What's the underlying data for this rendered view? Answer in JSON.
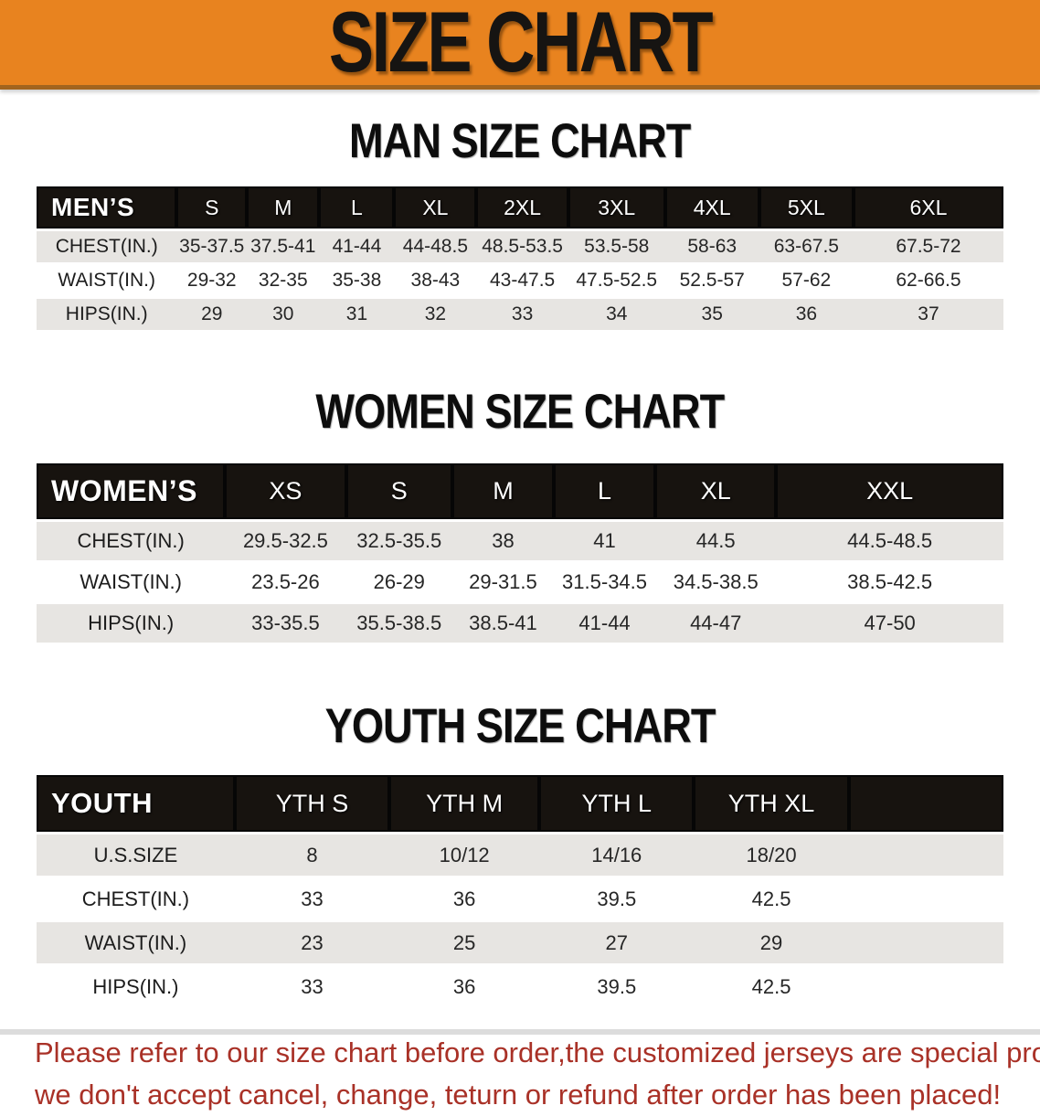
{
  "banner": {
    "title": "SIZE CHART"
  },
  "colors": {
    "banner_bg": "#e8831f",
    "banner_edge": "#a2641e",
    "header_bar": "#17130f",
    "row_gray": "#e7e5e2",
    "disclaimer_red": "#a93127"
  },
  "sections": [
    {
      "title": "MAN SIZE CHART",
      "header_label": "MEN’S",
      "columns": [
        "S",
        "M",
        "L",
        "XL",
        "2XL",
        "3XL",
        "4XL",
        "5XL",
        "6XL"
      ],
      "rows": [
        {
          "label": "CHEST(IN.)",
          "values": [
            "35-37.5",
            "37.5-41",
            "41-44",
            "44-48.5",
            "48.5-53.5",
            "53.5-58",
            "58-63",
            "63-67.5",
            "67.5-72"
          ]
        },
        {
          "label": "WAIST(IN.)",
          "values": [
            "29-32",
            "32-35",
            "35-38",
            "38-43",
            "43-47.5",
            "47.5-52.5",
            "52.5-57",
            "57-62",
            "62-66.5"
          ]
        },
        {
          "label": "HIPS(IN.)",
          "values": [
            "29",
            "30",
            "31",
            "32",
            "33",
            "34",
            "35",
            "36",
            "37"
          ]
        }
      ]
    },
    {
      "title": "WOMEN SIZE CHART",
      "header_label": "WOMEN’S",
      "columns": [
        "XS",
        "S",
        "M",
        "L",
        "XL",
        "XXL"
      ],
      "rows": [
        {
          "label": "CHEST(IN.)",
          "values": [
            "29.5-32.5",
            "32.5-35.5",
            "38",
            "41",
            "44.5",
            "44.5-48.5"
          ]
        },
        {
          "label": "WAIST(IN.)",
          "values": [
            "23.5-26",
            "26-29",
            "29-31.5",
            "31.5-34.5",
            "34.5-38.5",
            "38.5-42.5"
          ]
        },
        {
          "label": "HIPS(IN.)",
          "values": [
            "33-35.5",
            "35.5-38.5",
            "38.5-41",
            "41-44",
            "44-47",
            "47-50"
          ]
        }
      ]
    },
    {
      "title": "YOUTH SIZE CHART",
      "header_label": "YOUTH",
      "columns": [
        "YTH S",
        "YTH M",
        "YTH L",
        "YTH XL"
      ],
      "rows": [
        {
          "label": "U.S.SIZE",
          "values": [
            "8",
            "10/12",
            "14/16",
            "18/20"
          ]
        },
        {
          "label": "CHEST(IN.)",
          "values": [
            "33",
            "36",
            "39.5",
            "42.5"
          ]
        },
        {
          "label": "WAIST(IN.)",
          "values": [
            "23",
            "25",
            "27",
            "29"
          ]
        },
        {
          "label": "HIPS(IN.)",
          "values": [
            "33",
            "36",
            "39.5",
            "42.5"
          ]
        }
      ]
    }
  ],
  "disclaimer": {
    "line1": "Please refer to our size chart before order,the customized jerseys are special products,",
    "line2": "we don't accept cancel, change, teturn or refund after order has been placed!"
  }
}
